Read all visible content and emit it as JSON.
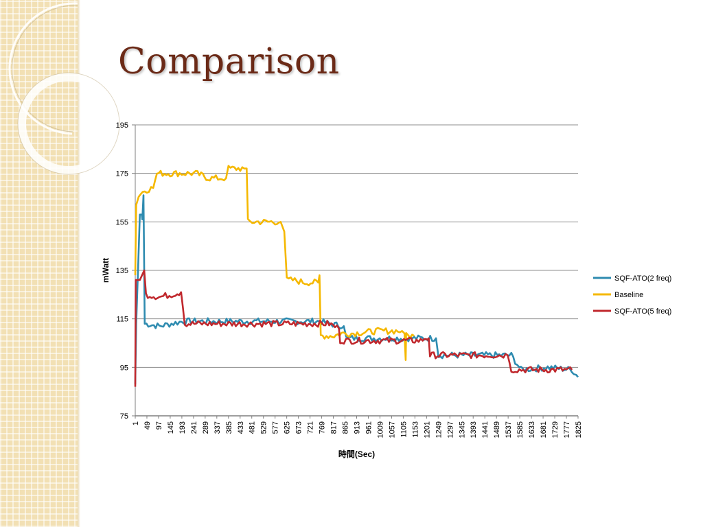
{
  "slide": {
    "title": "Comparison"
  },
  "chart_data": {
    "type": "line",
    "xlabel": "時間(Sec)",
    "ylabel": "mWatt",
    "ylim": [
      75,
      195
    ],
    "yticks": [
      75,
      95,
      115,
      135,
      155,
      175,
      195
    ],
    "xlim": [
      1,
      1825
    ],
    "xticks": [
      1,
      49,
      97,
      145,
      193,
      241,
      289,
      337,
      385,
      433,
      481,
      529,
      577,
      625,
      673,
      721,
      769,
      817,
      865,
      913,
      961,
      1009,
      1057,
      1105,
      1153,
      1201,
      1249,
      1297,
      1345,
      1393,
      1441,
      1489,
      1537,
      1585,
      1633,
      1681,
      1729,
      1777,
      1825
    ],
    "grid": "horizontal",
    "legend": "right",
    "series": [
      {
        "name": "SQF-ATO(2 freq)",
        "color": "#2e8bb0",
        "points": [
          [
            1,
            88
          ],
          [
            5,
            113
          ],
          [
            20,
            158
          ],
          [
            28,
            158
          ],
          [
            30,
            156
          ],
          [
            32,
            160
          ],
          [
            35,
            166
          ],
          [
            40,
            113
          ],
          [
            100,
            112
          ],
          [
            150,
            113
          ],
          [
            200,
            114
          ],
          [
            300,
            114
          ],
          [
            400,
            114
          ],
          [
            500,
            114
          ],
          [
            600,
            114
          ],
          [
            700,
            114
          ],
          [
            760,
            114
          ],
          [
            800,
            113
          ],
          [
            860,
            112
          ],
          [
            870,
            107
          ],
          [
            1000,
            107
          ],
          [
            1150,
            107
          ],
          [
            1200,
            107
          ],
          [
            1240,
            107
          ],
          [
            1250,
            100
          ],
          [
            1400,
            100
          ],
          [
            1500,
            100
          ],
          [
            1550,
            100
          ],
          [
            1590,
            94
          ],
          [
            1700,
            95
          ],
          [
            1800,
            94
          ],
          [
            1825,
            91
          ]
        ]
      },
      {
        "name": "Baseline",
        "color": "#f5b800",
        "points": [
          [
            1,
            133
          ],
          [
            5,
            162
          ],
          [
            15,
            166
          ],
          [
            40,
            168
          ],
          [
            75,
            169
          ],
          [
            90,
            175
          ],
          [
            200,
            175
          ],
          [
            250,
            175
          ],
          [
            280,
            174
          ],
          [
            300,
            173
          ],
          [
            375,
            173
          ],
          [
            385,
            177
          ],
          [
            450,
            177
          ],
          [
            460,
            177
          ],
          [
            465,
            155
          ],
          [
            500,
            155
          ],
          [
            600,
            155
          ],
          [
            615,
            151
          ],
          [
            625,
            131
          ],
          [
            650,
            131
          ],
          [
            700,
            130
          ],
          [
            755,
            130
          ],
          [
            760,
            133
          ],
          [
            765,
            108
          ],
          [
            820,
            108
          ],
          [
            850,
            109
          ],
          [
            900,
            109
          ],
          [
            1000,
            110
          ],
          [
            1050,
            110
          ],
          [
            1100,
            110
          ],
          [
            1110,
            109
          ],
          [
            1115,
            98
          ],
          [
            1117,
            108
          ],
          [
            1150,
            108
          ]
        ]
      },
      {
        "name": "SQF-ATO(5 freq)",
        "color": "#c0282d",
        "points": [
          [
            1,
            87
          ],
          [
            3,
            131
          ],
          [
            20,
            131
          ],
          [
            38,
            135
          ],
          [
            45,
            125
          ],
          [
            100,
            124
          ],
          [
            150,
            125
          ],
          [
            190,
            126
          ],
          [
            205,
            113
          ],
          [
            300,
            113
          ],
          [
            400,
            113
          ],
          [
            500,
            113
          ],
          [
            600,
            113
          ],
          [
            700,
            113
          ],
          [
            800,
            113
          ],
          [
            840,
            111
          ],
          [
            845,
            106
          ],
          [
            900,
            106
          ],
          [
            1000,
            106
          ],
          [
            1100,
            106
          ],
          [
            1160,
            106
          ],
          [
            1185,
            106
          ],
          [
            1190,
            107
          ],
          [
            1210,
            107
          ],
          [
            1215,
            100
          ],
          [
            1300,
            100
          ],
          [
            1400,
            100
          ],
          [
            1500,
            100
          ],
          [
            1535,
            100
          ],
          [
            1550,
            94
          ],
          [
            1600,
            94
          ],
          [
            1700,
            94
          ],
          [
            1800,
            94
          ]
        ]
      }
    ]
  }
}
